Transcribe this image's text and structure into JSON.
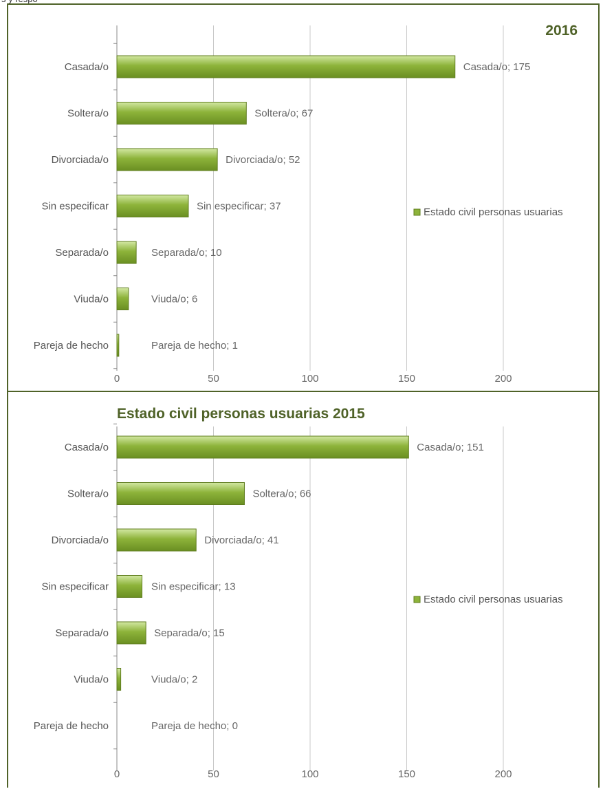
{
  "chart_data": [
    {
      "type": "bar",
      "orientation": "horizontal",
      "title": "2016",
      "categories": [
        "Casada/o",
        "Soltera/o",
        "Divorciada/o",
        "Sin especificar",
        "Separada/o",
        "Viuda/o",
        "Pareja de hecho"
      ],
      "series": [
        {
          "name": "Estado civil personas usuarias",
          "values": [
            175,
            67,
            52,
            37,
            10,
            6,
            1
          ]
        }
      ],
      "data_labels": [
        "Casada/o; 175",
        "Soltera/o; 67",
        "Divorciada/o; 52",
        "Sin especificar; 37",
        "Separada/o; 10",
        "Viuda/o; 6",
        "Pareja de hecho; 1"
      ],
      "xlim": [
        0,
        200
      ],
      "xticks": [
        "0",
        "50",
        "100",
        "150",
        "200"
      ],
      "grid": true,
      "legend_position": "right"
    },
    {
      "type": "bar",
      "orientation": "horizontal",
      "title": "Estado civil personas usuarias 2015",
      "categories": [
        "Casada/o",
        "Soltera/o",
        "Divorciada/o",
        "Sin especificar",
        "Separada/o",
        "Viuda/o",
        "Pareja de hecho"
      ],
      "series": [
        {
          "name": "Estado civil personas usuarias",
          "values": [
            151,
            66,
            41,
            13,
            15,
            2,
            0
          ]
        }
      ],
      "data_labels": [
        "Casada/o; 151",
        "Soltera/o; 66",
        "Divorciada/o; 41",
        "Sin especificar; 13",
        "Separada/o; 15",
        "Viuda/o; 2",
        "Pareja de hecho; 0"
      ],
      "xlim": [
        0,
        200
      ],
      "xticks": [
        "0",
        "50",
        "100",
        "150",
        "200"
      ],
      "grid": true,
      "legend_position": "right"
    }
  ],
  "colors": {
    "bar_fill": "#8db33a",
    "bar_edge": "#5f7d1e",
    "grid": "#c8c8c8",
    "frame": "#4f6228",
    "title": "#4f6228"
  }
}
